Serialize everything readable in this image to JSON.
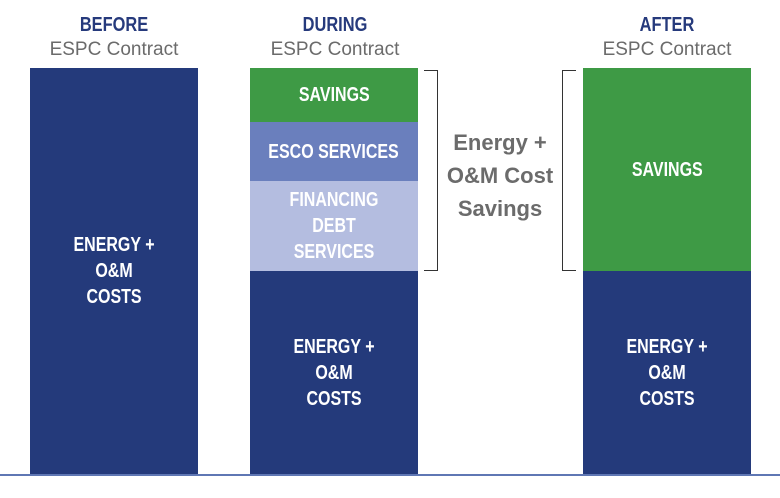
{
  "columns": {
    "before": {
      "title": "BEFORE",
      "subtitle": "ESPC Contract",
      "energy_label": "ENERGY + O&M COSTS"
    },
    "during": {
      "title": "DURING",
      "subtitle": "ESPC Contract",
      "savings_label": "SAVINGS",
      "esco_label": "ESCO SERVICES",
      "financing_label": "FINANCING DEBT SERVICES",
      "energy_label": "ENERGY + O&M COSTS"
    },
    "after": {
      "title": "AFTER",
      "subtitle": "ESPC Contract",
      "savings_label": "SAVINGS",
      "energy_label": "ENERGY + O&M COSTS"
    }
  },
  "brace_label": "Energy + O&M Cost Savings",
  "colors": {
    "navy": "#243a7b",
    "green": "#3e9a45",
    "esco": "#6a7fbd",
    "financing": "#b4bde0",
    "title": "#263a7c",
    "subtitle": "#6b6b6b"
  }
}
